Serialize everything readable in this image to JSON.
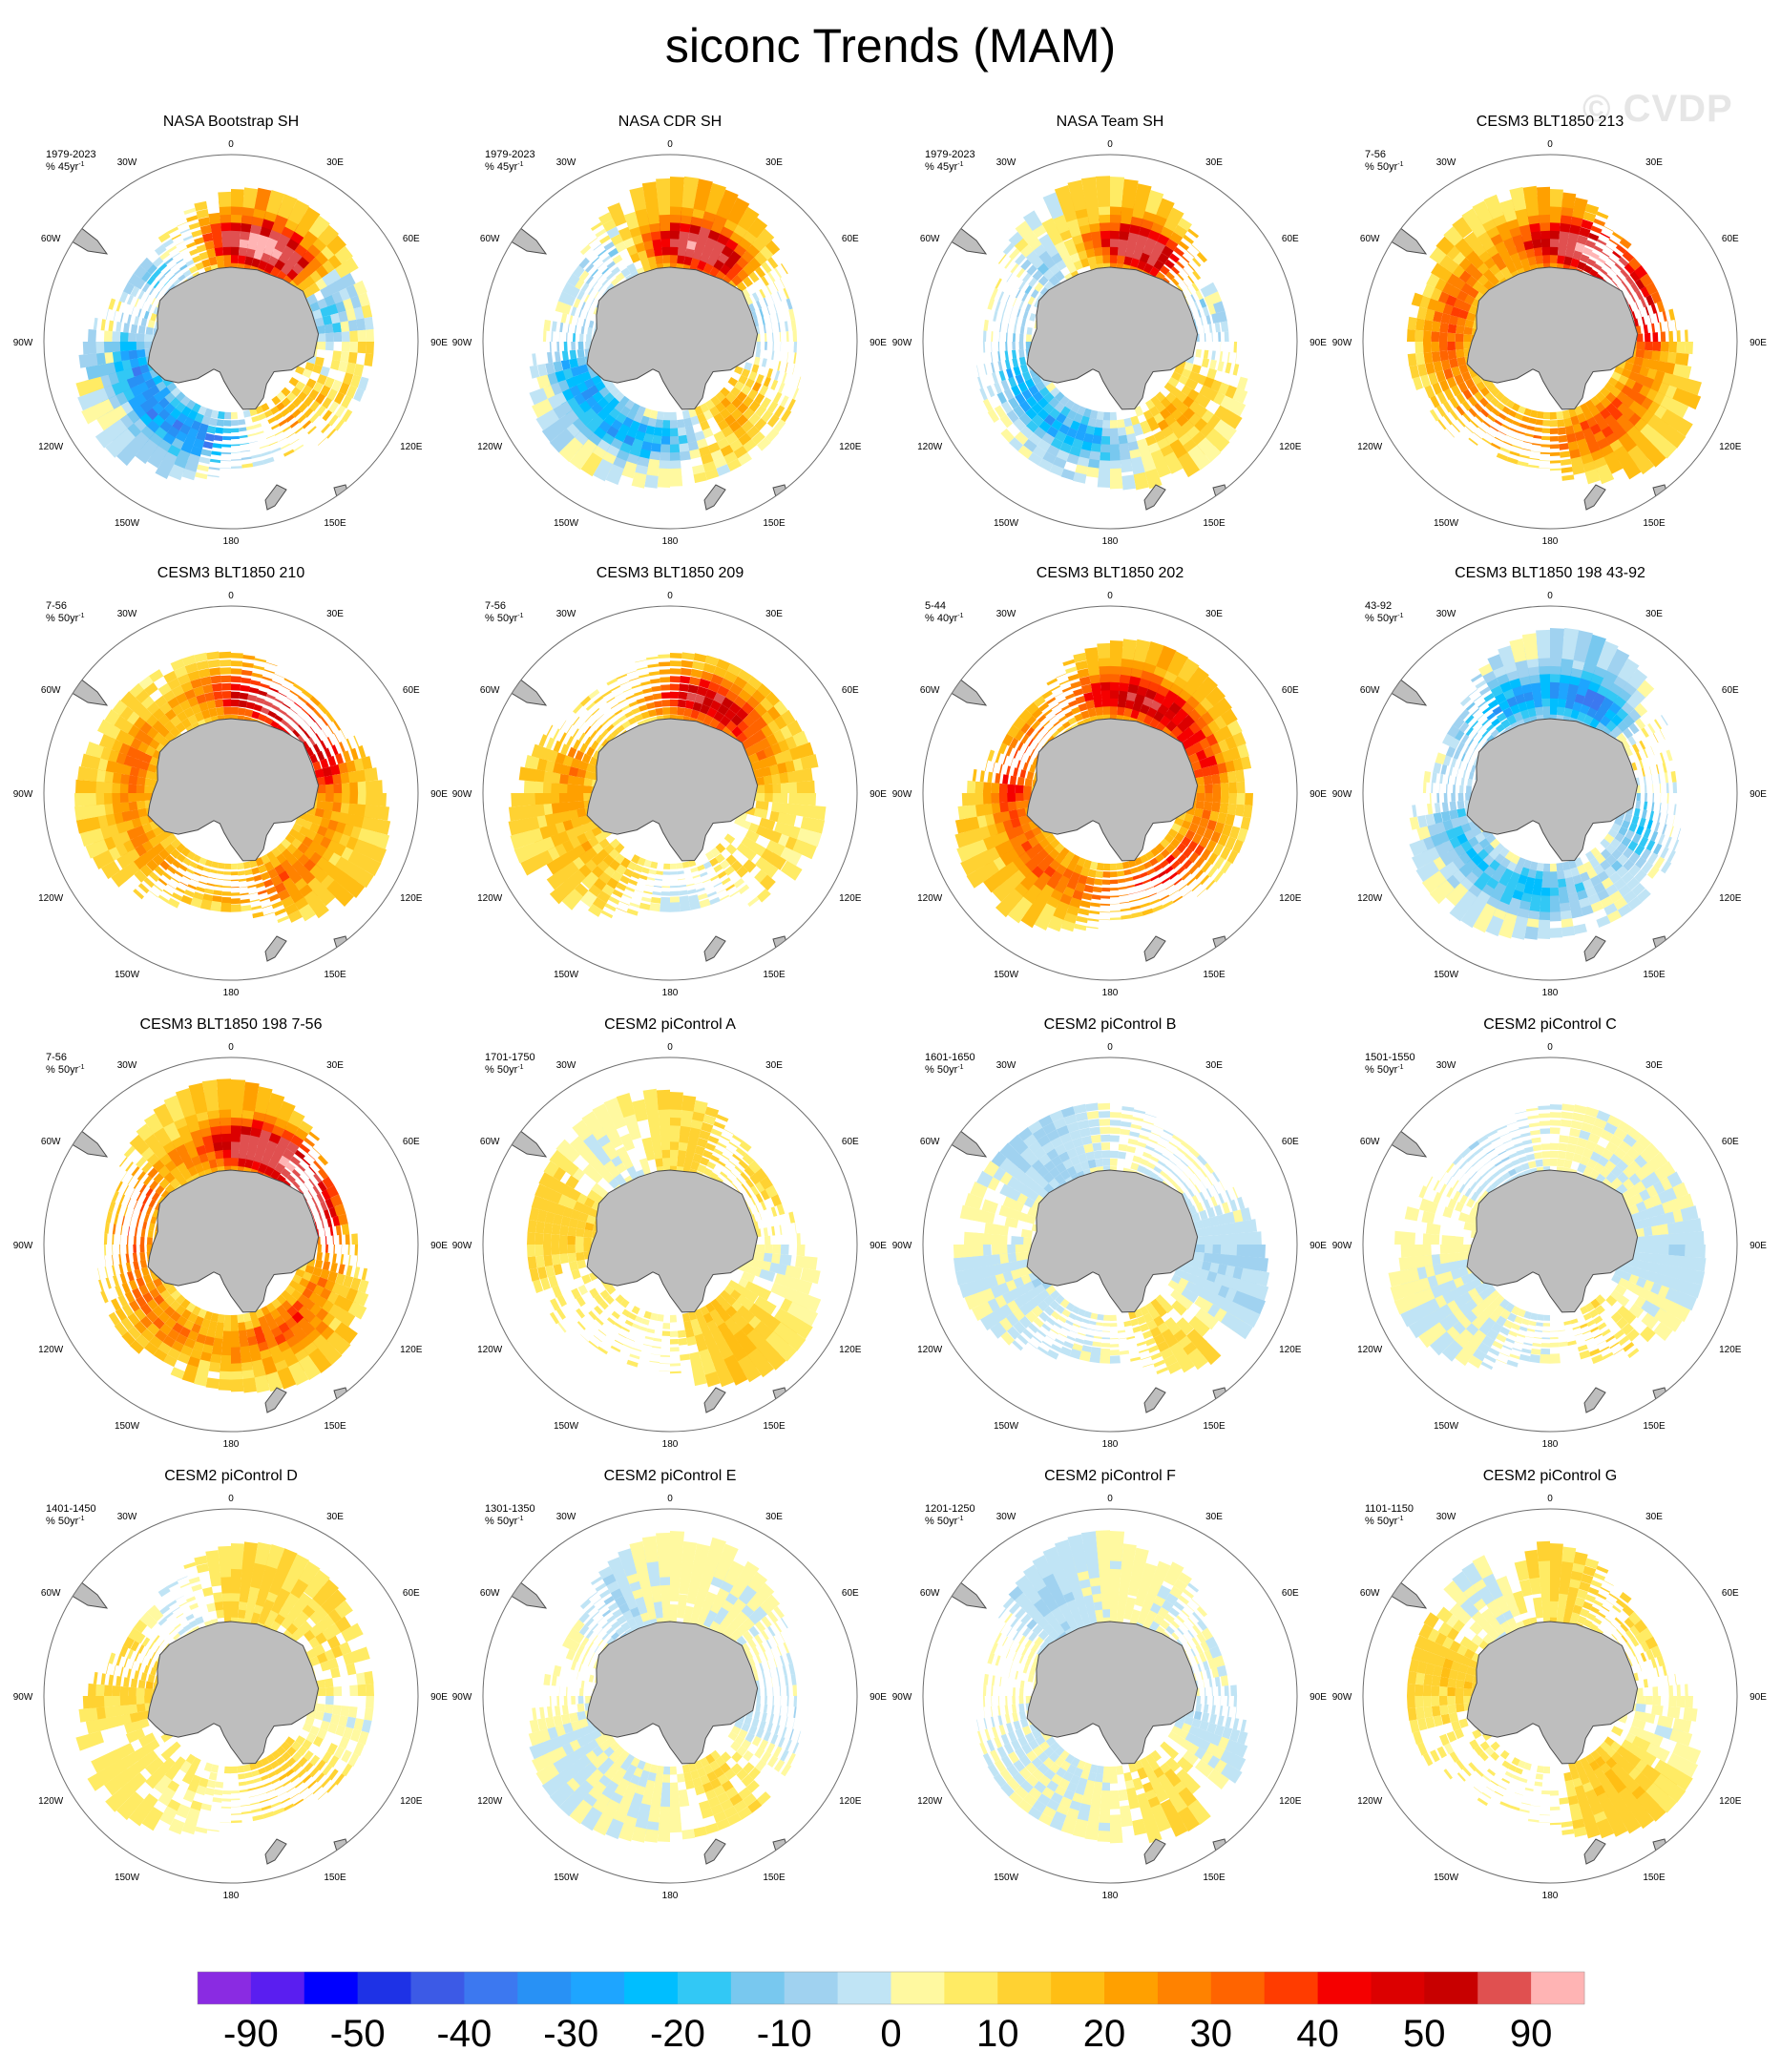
{
  "title": "siconc Trends (MAM)",
  "watermark": "© CVDP",
  "units_sup": "-1",
  "longitude_labels": [
    "0",
    "30E",
    "60E",
    "90E",
    "120E",
    "150E",
    "180",
    "150W",
    "120W",
    "90W",
    "60W",
    "30W"
  ],
  "colors": {
    "land": "#bebebe",
    "coastline": "#4a4a4a",
    "circle": "#6e6e6e",
    "watermark": "#e6e6e6"
  },
  "colorbar": {
    "colors": [
      "#8a2be2",
      "#5a1ef0",
      "#0000ff",
      "#1e32e6",
      "#3c5ae6",
      "#3c78f0",
      "#2891f5",
      "#1ea5ff",
      "#00beff",
      "#32c8f5",
      "#78c8ef",
      "#a0d2f0",
      "#c0e4f5",
      "#fff9a0",
      "#ffeb64",
      "#ffd232",
      "#ffbe14",
      "#ffa000",
      "#ff8200",
      "#ff6400",
      "#ff3c00",
      "#f50000",
      "#dc0000",
      "#c80000",
      "#e05050",
      "#ffb4b4"
    ],
    "tick_labels": [
      "-90",
      "-50",
      "-40",
      "-30",
      "-20",
      "-10",
      "0",
      "10",
      "20",
      "30",
      "40",
      "50",
      "90"
    ]
  },
  "chart_data": {
    "type": "map",
    "projection": "south-polar-stereographic",
    "variable": "siconc",
    "season": "MAM",
    "contour_levels": [
      -90,
      -80,
      -70,
      -60,
      -50,
      -45,
      -40,
      -35,
      -30,
      -25,
      -20,
      -15,
      -10,
      -5,
      0,
      5,
      10,
      15,
      20,
      25,
      30,
      35,
      40,
      45,
      50,
      70,
      90
    ],
    "panels": [
      {
        "title": "NASA Bootstrap SH",
        "period": "1979-2023",
        "units": "% 45yr",
        "pattern": "obs",
        "max_abs": 70
      },
      {
        "title": "NASA CDR SH",
        "period": "1979-2023",
        "units": "% 45yr",
        "pattern": "obs",
        "max_abs": 60
      },
      {
        "title": "NASA Team SH",
        "period": "1979-2023",
        "units": "% 45yr",
        "pattern": "obs",
        "max_abs": 55
      },
      {
        "title": "CESM3 BLT1850 213",
        "period": "7-56",
        "units": "% 50yr",
        "pattern": "warm-ross",
        "max_abs": 55
      },
      {
        "title": "CESM3 BLT1850 210",
        "period": "7-56",
        "units": "% 50yr",
        "pattern": "warm-ross",
        "max_abs": 45
      },
      {
        "title": "CESM3 BLT1850 209",
        "period": "7-56",
        "units": "% 50yr",
        "pattern": "mixed-warm",
        "max_abs": 45
      },
      {
        "title": "CESM3 BLT1850 202",
        "period": "5-44",
        "units": "% 40yr",
        "pattern": "warm-ring",
        "max_abs": 45
      },
      {
        "title": "CESM3 BLT1850 198 43-92",
        "period": "43-92",
        "units": "% 50yr",
        "pattern": "cool-ross",
        "max_abs": 45
      },
      {
        "title": "CESM3 BLT1850 198 7-56",
        "period": "7-56",
        "units": "% 50yr",
        "pattern": "warm-ross",
        "max_abs": 55
      },
      {
        "title": "CESM2 piControl A",
        "period": "1701-1750",
        "units": "% 50yr",
        "pattern": "weak",
        "max_abs": 25
      },
      {
        "title": "CESM2 piControl B",
        "period": "1601-1650",
        "units": "% 50yr",
        "pattern": "weak-cool",
        "max_abs": 25
      },
      {
        "title": "CESM2 piControl C",
        "period": "1501-1550",
        "units": "% 50yr",
        "pattern": "weak-cool",
        "max_abs": 20
      },
      {
        "title": "CESM2 piControl D",
        "period": "1401-1450",
        "units": "% 50yr",
        "pattern": "weak",
        "max_abs": 25
      },
      {
        "title": "CESM2 piControl E",
        "period": "1301-1350",
        "units": "% 50yr",
        "pattern": "weak-cool",
        "max_abs": 20
      },
      {
        "title": "CESM2 piControl F",
        "period": "1201-1250",
        "units": "% 50yr",
        "pattern": "weak-cool",
        "max_abs": 20
      },
      {
        "title": "CESM2 piControl G",
        "period": "1101-1150",
        "units": "% 50yr",
        "pattern": "weak",
        "max_abs": 25
      }
    ]
  }
}
